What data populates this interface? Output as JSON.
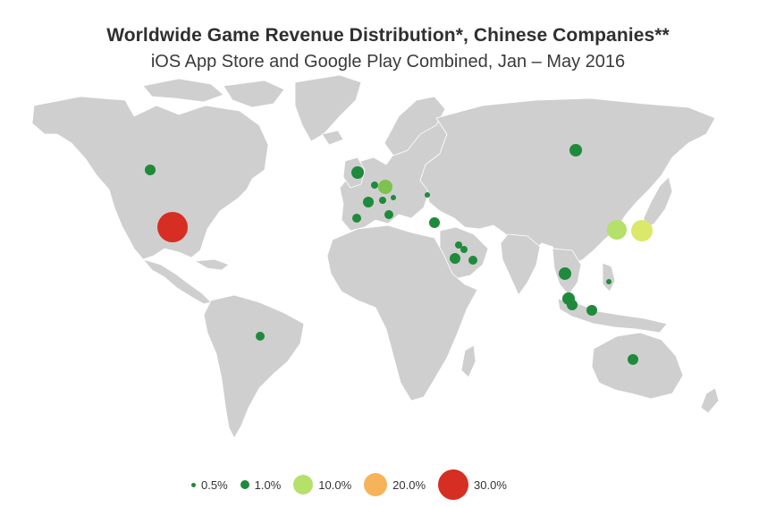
{
  "title": "Worldwide Game Revenue Distribution*, Chinese Companies**",
  "subtitle": "iOS App Store and Google Play Combined, Jan – May 2016",
  "colors": {
    "land": "#cfcfcf",
    "ocean": "#ffffff",
    "dot_dark_green": "#1f8a3c",
    "dot_light_green": "#b5e06a",
    "dot_yellow_green": "#dbe86a",
    "dot_orange": "#f7b35a",
    "dot_red": "#d62e22"
  },
  "legend": [
    {
      "label": "0.5%",
      "color": "#1f8a3c",
      "size": 5
    },
    {
      "label": "1.0%",
      "color": "#1f8a3c",
      "size": 10
    },
    {
      "label": "10.0%",
      "color": "#b5e06a",
      "size": 22
    },
    {
      "label": "20.0%",
      "color": "#f7b35a",
      "size": 26
    },
    {
      "label": "30.0%",
      "color": "#d62e22",
      "size": 34
    }
  ],
  "markers": [
    {
      "name": "united-states",
      "color": "#d62e22",
      "r": 17
    },
    {
      "name": "canada",
      "color": "#1f8a3c",
      "r": 6
    },
    {
      "name": "brazil",
      "color": "#1f8a3c",
      "r": 5
    },
    {
      "name": "united-kingdom",
      "color": "#1f8a3c",
      "r": 7
    },
    {
      "name": "france",
      "color": "#1f8a3c",
      "r": 6
    },
    {
      "name": "germany",
      "color": "#7dc24f",
      "r": 8
    },
    {
      "name": "netherlands",
      "color": "#1f8a3c",
      "r": 4
    },
    {
      "name": "switzerland",
      "color": "#1f8a3c",
      "r": 4
    },
    {
      "name": "austria",
      "color": "#1f8a3c",
      "r": 3
    },
    {
      "name": "spain",
      "color": "#1f8a3c",
      "r": 5
    },
    {
      "name": "italy",
      "color": "#1f8a3c",
      "r": 5
    },
    {
      "name": "greece",
      "color": "#1f8a3c",
      "r": 3
    },
    {
      "name": "turkey",
      "color": "#1f8a3c",
      "r": 6
    },
    {
      "name": "russia",
      "color": "#1f8a3c",
      "r": 7
    },
    {
      "name": "kuwait",
      "color": "#1f8a3c",
      "r": 4
    },
    {
      "name": "saudi-arabia",
      "color": "#1f8a3c",
      "r": 6
    },
    {
      "name": "uae",
      "color": "#1f8a3c",
      "r": 5
    },
    {
      "name": "qatar",
      "color": "#1f8a3c",
      "r": 4
    },
    {
      "name": "south-korea",
      "color": "#b5e06a",
      "r": 11
    },
    {
      "name": "japan",
      "color": "#dbe86a",
      "r": 12
    },
    {
      "name": "thailand",
      "color": "#1f8a3c",
      "r": 7
    },
    {
      "name": "malaysia",
      "color": "#1f8a3c",
      "r": 7
    },
    {
      "name": "singapore",
      "color": "#1f8a3c",
      "r": 6
    },
    {
      "name": "philippines",
      "color": "#1f8a3c",
      "r": 3
    },
    {
      "name": "indonesia",
      "color": "#1f8a3c",
      "r": 6
    },
    {
      "name": "australia",
      "color": "#1f8a3c",
      "r": 6
    }
  ]
}
